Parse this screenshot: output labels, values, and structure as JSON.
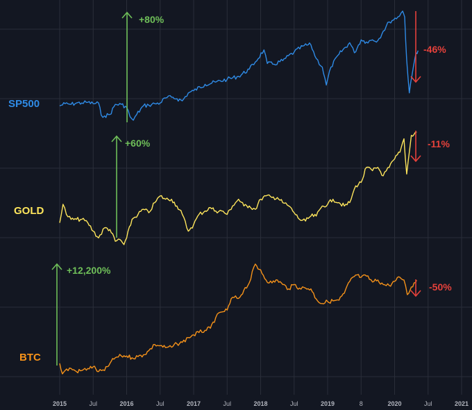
{
  "chart_data": {
    "type": "line",
    "colors": {
      "background": "#131722",
      "grid": "#2a2e39",
      "tick": "#b2b5be",
      "up": "#6fbf59",
      "down": "#e6413b"
    },
    "x_ticks": [
      "2015",
      "Jul",
      "2016",
      "Jul",
      "2017",
      "Jul",
      "2018",
      "Jul",
      "2019",
      "8",
      "2020",
      "Jul",
      "2021"
    ],
    "series": [
      {
        "name": "SP500",
        "color": "#2f8be6",
        "points": [
          [
            2015.0,
            2060
          ],
          [
            2015.08,
            2090
          ],
          [
            2015.17,
            2080
          ],
          [
            2015.25,
            2100
          ],
          [
            2015.33,
            2100
          ],
          [
            2015.42,
            2110
          ],
          [
            2015.5,
            2090
          ],
          [
            2015.58,
            2100
          ],
          [
            2015.62,
            1930
          ],
          [
            2015.67,
            1920
          ],
          [
            2015.75,
            1940
          ],
          [
            2015.83,
            2080
          ],
          [
            2015.92,
            2080
          ],
          [
            2016.0,
            2040
          ],
          [
            2016.05,
            1910
          ],
          [
            2016.1,
            1860
          ],
          [
            2016.15,
            1940
          ],
          [
            2016.25,
            2060
          ],
          [
            2016.33,
            2070
          ],
          [
            2016.42,
            2090
          ],
          [
            2016.5,
            2100
          ],
          [
            2016.58,
            2170
          ],
          [
            2016.67,
            2180
          ],
          [
            2016.75,
            2160
          ],
          [
            2016.83,
            2130
          ],
          [
            2016.92,
            2240
          ],
          [
            2017.0,
            2270
          ],
          [
            2017.17,
            2360
          ],
          [
            2017.33,
            2390
          ],
          [
            2017.5,
            2430
          ],
          [
            2017.67,
            2470
          ],
          [
            2017.83,
            2570
          ],
          [
            2017.92,
            2670
          ],
          [
            2018.05,
            2840
          ],
          [
            2018.1,
            2650
          ],
          [
            2018.2,
            2640
          ],
          [
            2018.33,
            2690
          ],
          [
            2018.5,
            2810
          ],
          [
            2018.65,
            2900
          ],
          [
            2018.75,
            2910
          ],
          [
            2018.83,
            2720
          ],
          [
            2018.92,
            2600
          ],
          [
            2018.98,
            2350
          ],
          [
            2019.05,
            2600
          ],
          [
            2019.17,
            2780
          ],
          [
            2019.33,
            2940
          ],
          [
            2019.4,
            2800
          ],
          [
            2019.5,
            2980
          ],
          [
            2019.58,
            2950
          ],
          [
            2019.67,
            2980
          ],
          [
            2019.75,
            2970
          ],
          [
            2019.83,
            3100
          ],
          [
            2019.92,
            3230
          ],
          [
            2020.05,
            3300
          ],
          [
            2020.12,
            3380
          ],
          [
            2020.15,
            3300
          ],
          [
            2020.18,
            2700
          ],
          [
            2020.22,
            2240
          ],
          [
            2020.28,
            2600
          ],
          [
            2020.32,
            2800
          ],
          [
            2020.35,
            2830
          ]
        ]
      },
      {
        "name": "GOLD",
        "color": "#ffe65c",
        "points": [
          [
            2015.0,
            1180
          ],
          [
            2015.05,
            1290
          ],
          [
            2015.1,
            1230
          ],
          [
            2015.17,
            1200
          ],
          [
            2015.25,
            1200
          ],
          [
            2015.33,
            1200
          ],
          [
            2015.42,
            1180
          ],
          [
            2015.5,
            1130
          ],
          [
            2015.58,
            1090
          ],
          [
            2015.67,
            1150
          ],
          [
            2015.75,
            1140
          ],
          [
            2015.83,
            1070
          ],
          [
            2015.9,
            1080
          ],
          [
            2015.96,
            1050
          ],
          [
            2016.0,
            1090
          ],
          [
            2016.08,
            1200
          ],
          [
            2016.17,
            1230
          ],
          [
            2016.25,
            1260
          ],
          [
            2016.33,
            1240
          ],
          [
            2016.42,
            1300
          ],
          [
            2016.5,
            1340
          ],
          [
            2016.58,
            1320
          ],
          [
            2016.67,
            1320
          ],
          [
            2016.75,
            1280
          ],
          [
            2016.83,
            1230
          ],
          [
            2016.92,
            1130
          ],
          [
            2016.96,
            1150
          ],
          [
            2017.0,
            1170
          ],
          [
            2017.08,
            1230
          ],
          [
            2017.17,
            1250
          ],
          [
            2017.25,
            1270
          ],
          [
            2017.33,
            1250
          ],
          [
            2017.42,
            1250
          ],
          [
            2017.5,
            1230
          ],
          [
            2017.58,
            1280
          ],
          [
            2017.67,
            1320
          ],
          [
            2017.75,
            1280
          ],
          [
            2017.83,
            1280
          ],
          [
            2017.92,
            1260
          ],
          [
            2018.0,
            1320
          ],
          [
            2018.08,
            1340
          ],
          [
            2018.17,
            1330
          ],
          [
            2018.25,
            1330
          ],
          [
            2018.33,
            1300
          ],
          [
            2018.42,
            1280
          ],
          [
            2018.5,
            1240
          ],
          [
            2018.58,
            1200
          ],
          [
            2018.67,
            1190
          ],
          [
            2018.75,
            1220
          ],
          [
            2018.83,
            1220
          ],
          [
            2018.92,
            1280
          ],
          [
            2019.0,
            1290
          ],
          [
            2019.08,
            1320
          ],
          [
            2019.17,
            1300
          ],
          [
            2019.25,
            1280
          ],
          [
            2019.33,
            1300
          ],
          [
            2019.42,
            1400
          ],
          [
            2019.5,
            1420
          ],
          [
            2019.58,
            1510
          ],
          [
            2019.67,
            1490
          ],
          [
            2019.75,
            1510
          ],
          [
            2019.83,
            1460
          ],
          [
            2019.92,
            1510
          ],
          [
            2020.0,
            1560
          ],
          [
            2020.08,
            1600
          ],
          [
            2020.14,
            1680
          ],
          [
            2020.18,
            1470
          ],
          [
            2020.25,
            1700
          ],
          [
            2020.33,
            1720
          ]
        ]
      },
      {
        "name": "BTC",
        "color": "#f7931a",
        "points": [
          [
            2015.0,
            320
          ],
          [
            2015.04,
            210
          ],
          [
            2015.08,
            240
          ],
          [
            2015.17,
            260
          ],
          [
            2015.25,
            230
          ],
          [
            2015.33,
            240
          ],
          [
            2015.42,
            260
          ],
          [
            2015.5,
            280
          ],
          [
            2015.58,
            230
          ],
          [
            2015.67,
            240
          ],
          [
            2015.75,
            320
          ],
          [
            2015.83,
            400
          ],
          [
            2015.92,
            430
          ],
          [
            2016.0,
            430
          ],
          [
            2016.08,
            400
          ],
          [
            2016.17,
            420
          ],
          [
            2016.25,
            450
          ],
          [
            2016.33,
            530
          ],
          [
            2016.42,
            680
          ],
          [
            2016.5,
            650
          ],
          [
            2016.58,
            600
          ],
          [
            2016.67,
            610
          ],
          [
            2016.75,
            700
          ],
          [
            2016.83,
            740
          ],
          [
            2016.92,
            900
          ],
          [
            2017.0,
            1000
          ],
          [
            2017.08,
            1100
          ],
          [
            2017.17,
            1200
          ],
          [
            2017.25,
            1300
          ],
          [
            2017.33,
            2000
          ],
          [
            2017.42,
            2500
          ],
          [
            2017.5,
            2700
          ],
          [
            2017.58,
            4500
          ],
          [
            2017.67,
            4300
          ],
          [
            2017.75,
            6000
          ],
          [
            2017.83,
            8000
          ],
          [
            2017.92,
            17000
          ],
          [
            2017.96,
            14000
          ],
          [
            2018.0,
            13500
          ],
          [
            2018.08,
            9000
          ],
          [
            2018.17,
            8000
          ],
          [
            2018.25,
            9000
          ],
          [
            2018.33,
            7500
          ],
          [
            2018.42,
            6300
          ],
          [
            2018.5,
            7500
          ],
          [
            2018.58,
            6500
          ],
          [
            2018.67,
            6500
          ],
          [
            2018.75,
            6300
          ],
          [
            2018.83,
            4200
          ],
          [
            2018.92,
            3500
          ],
          [
            2019.0,
            3800
          ],
          [
            2019.08,
            3900
          ],
          [
            2019.17,
            4000
          ],
          [
            2019.25,
            5300
          ],
          [
            2019.33,
            8500
          ],
          [
            2019.42,
            11000
          ],
          [
            2019.5,
            10000
          ],
          [
            2019.58,
            10500
          ],
          [
            2019.67,
            8300
          ],
          [
            2019.75,
            9000
          ],
          [
            2019.83,
            7500
          ],
          [
            2019.92,
            7200
          ],
          [
            2020.0,
            8500
          ],
          [
            2020.08,
            10000
          ],
          [
            2020.14,
            9000
          ],
          [
            2020.19,
            5000
          ],
          [
            2020.25,
            6800
          ],
          [
            2020.33,
            8900
          ]
        ]
      }
    ],
    "annotations": [
      {
        "series": "SP500",
        "text": "+80%",
        "x": 2016.1,
        "direction": "up"
      },
      {
        "series": "SP500",
        "text": "-46%",
        "x": 2020.3,
        "direction": "down"
      },
      {
        "series": "GOLD",
        "text": "+60%",
        "x": 2015.92,
        "direction": "up"
      },
      {
        "series": "GOLD",
        "text": "-11%",
        "x": 2020.3,
        "direction": "down"
      },
      {
        "series": "BTC",
        "text": "+12,200%",
        "x": 2015.0,
        "direction": "up"
      },
      {
        "series": "BTC",
        "text": "-50%",
        "x": 2020.3,
        "direction": "down"
      }
    ]
  }
}
